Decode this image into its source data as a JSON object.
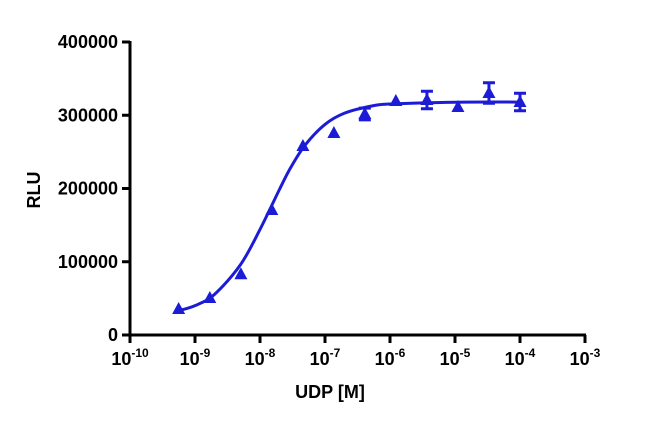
{
  "chart_data": {
    "type": "scatter",
    "x_label": "UDP [M]",
    "y_label": "RLU",
    "x_log": true,
    "xlim": [
      1e-10,
      0.001
    ],
    "xticks": [
      {
        "value": 1e-10,
        "label": "10-10"
      },
      {
        "value": 1e-09,
        "label": "10-9"
      },
      {
        "value": 1e-08,
        "label": "10-8"
      },
      {
        "value": 1e-07,
        "label": "10-7"
      },
      {
        "value": 1e-06,
        "label": "10-6"
      },
      {
        "value": 1e-05,
        "label": "10-5"
      },
      {
        "value": 0.0001,
        "label": "10-4"
      },
      {
        "value": 0.001,
        "label": "10-3"
      }
    ],
    "ylim": [
      0,
      400000
    ],
    "yticks": [
      0,
      100000,
      200000,
      300000,
      400000
    ],
    "color": "#1c1cd6",
    "x": [
      5.6e-10,
      1.69e-09,
      5.08e-09,
      1.52e-08,
      4.57e-08,
      1.37e-07,
      4.1e-07,
      1.23e-06,
      3.7e-06,
      1.11e-05,
      3.33e-05,
      0.0001
    ],
    "values": [
      35500,
      50500,
      83000,
      170600,
      258000,
      275700,
      301700,
      319500,
      320800,
      311300,
      330400,
      318100
    ],
    "errors": [
      null,
      null,
      null,
      null,
      null,
      null,
      8000,
      null,
      12000,
      null,
      14000,
      12000
    ],
    "fit": {
      "x": [
        5.6e-10,
        1e-09,
        2e-09,
        5e-09,
        1e-08,
        2e-08,
        3e-08,
        5e-08,
        1e-07,
        2e-07,
        5e-07,
        1e-06,
        1e-05,
        0.0001
      ],
      "values": [
        33200,
        40100,
        55500,
        95900,
        144100,
        199000,
        229300,
        259800,
        287500,
        302900,
        312300,
        315300,
        317800,
        318000
      ]
    }
  }
}
